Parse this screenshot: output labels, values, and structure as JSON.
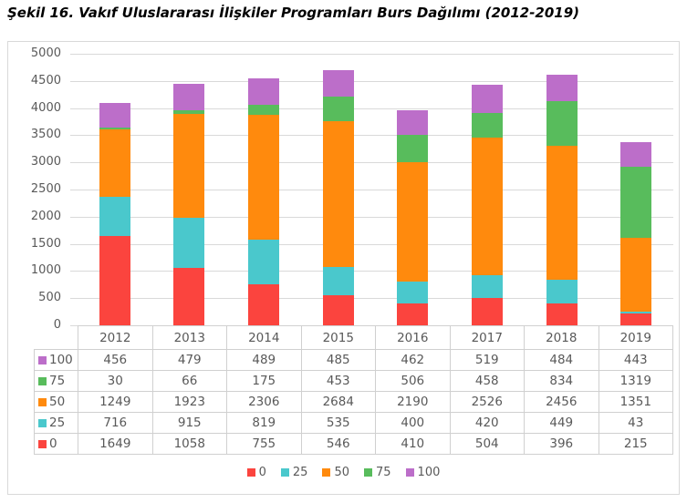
{
  "title": "Şekil 16. Vakıf Uluslararası İlişkiler Programları Burs Dağılımı (2012-2019)",
  "colors": {
    "series_0": "#FB443E",
    "series_25": "#4AC8CC",
    "series_50": "#FF8A0D",
    "series_75": "#58BC5C",
    "series_100": "#BC6EC9",
    "gridline": "#D9D9D9",
    "frame_border": "#D9D9D9",
    "table_border": "#D0D0D0",
    "text": "#595959",
    "title_text": "#000000"
  },
  "chart_data": {
    "type": "bar",
    "stacked": true,
    "title": "Şekil 16. Vakıf Uluslararası İlişkiler Programları Burs Dağılımı (2012-2019)",
    "categories": [
      "2012",
      "2013",
      "2014",
      "2015",
      "2016",
      "2017",
      "2018",
      "2019"
    ],
    "series": [
      {
        "name": "0",
        "color": "#FB443E",
        "values": [
          1649,
          1058,
          755,
          546,
          410,
          504,
          396,
          215
        ]
      },
      {
        "name": "25",
        "color": "#4AC8CC",
        "values": [
          716,
          915,
          819,
          535,
          400,
          420,
          449,
          43
        ]
      },
      {
        "name": "50",
        "color": "#FF8A0D",
        "values": [
          1249,
          1923,
          2306,
          2684,
          2190,
          2526,
          2456,
          1351
        ]
      },
      {
        "name": "75",
        "color": "#58BC5C",
        "values": [
          30,
          66,
          175,
          453,
          506,
          458,
          834,
          1319
        ]
      },
      {
        "name": "100",
        "color": "#BC6EC9",
        "values": [
          456,
          479,
          489,
          485,
          462,
          519,
          484,
          443
        ]
      }
    ],
    "xlabel": "",
    "ylabel": "",
    "ylim": [
      0,
      5000
    ],
    "ytick_step": 500,
    "yticks": [
      0,
      500,
      1000,
      1500,
      2000,
      2500,
      3000,
      3500,
      4000,
      4500,
      5000
    ],
    "grid": true,
    "legend_position": "bottom",
    "legend_order": [
      "0",
      "25",
      "50",
      "75",
      "100"
    ],
    "data_table_row_order": [
      "100",
      "75",
      "50",
      "25",
      "0"
    ]
  }
}
